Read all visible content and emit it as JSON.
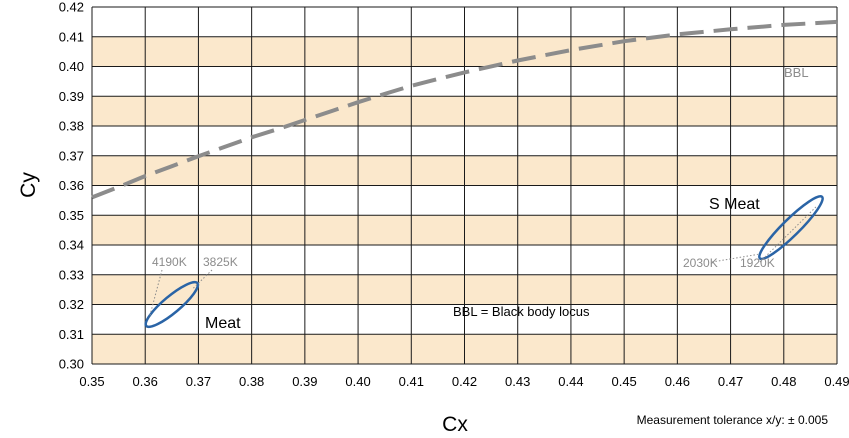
{
  "chart_data": {
    "type": "line",
    "xlabel": "Cx",
    "ylabel": "Cy",
    "xlim": [
      0.35,
      0.49
    ],
    "ylim": [
      0.3,
      0.42
    ],
    "x_ticks": [
      "0.35",
      "0.36",
      "0.37",
      "0.38",
      "0.39",
      "0.40",
      "0.41",
      "0.42",
      "0.43",
      "0.44",
      "0.45",
      "0.46",
      "0.47",
      "0.48",
      "0.49"
    ],
    "y_ticks": [
      "0.30",
      "0.31",
      "0.32",
      "0.33",
      "0.34",
      "0.35",
      "0.36",
      "0.37",
      "0.38",
      "0.39",
      "0.40",
      "0.41",
      "0.42"
    ],
    "grid": true,
    "band_color": "#fbe8cc",
    "series": [
      {
        "name": "BBL",
        "style": "dashed",
        "color": "#8c8c8c",
        "x": [
          0.35,
          0.355,
          0.36,
          0.365,
          0.37,
          0.375,
          0.38,
          0.385,
          0.39,
          0.395,
          0.4,
          0.405,
          0.41,
          0.415,
          0.42,
          0.43,
          0.44,
          0.45,
          0.46,
          0.47,
          0.48,
          0.49
        ],
        "y": [
          0.356,
          0.3595,
          0.3632,
          0.3665,
          0.3698,
          0.373,
          0.3762,
          0.379,
          0.382,
          0.385,
          0.388,
          0.3908,
          0.3935,
          0.3958,
          0.398,
          0.402,
          0.4055,
          0.4085,
          0.4108,
          0.4125,
          0.414,
          0.415
        ]
      }
    ],
    "ellipses": [
      {
        "name": "Meat",
        "color": "#2a64a6",
        "center": [
          0.365,
          0.32
        ],
        "endpoints": [
          [
            0.3602,
            0.3128
          ],
          [
            0.3698,
            0.3272
          ]
        ],
        "semi_minor": 0.0028,
        "labels": {
          "main": "Meat",
          "cct_low": "4190K",
          "cct_high": "3825K"
        }
      },
      {
        "name": "S Meat",
        "color": "#2a64a6",
        "center": [
          0.4815,
          0.3425
        ],
        "endpoints": [
          [
            0.4755,
            0.3355
          ],
          [
            0.4872,
            0.3562
          ]
        ],
        "semi_minor": 0.0028,
        "labels": {
          "main": "S Meat",
          "cct_low": "2030K",
          "cct_high": "1920K"
        }
      }
    ],
    "annotations": {
      "bbl_label": "BBL",
      "bbl_note": "BBL = Black body locus",
      "footnote": "Measurement tolerance x/y: ± 0.005"
    }
  }
}
